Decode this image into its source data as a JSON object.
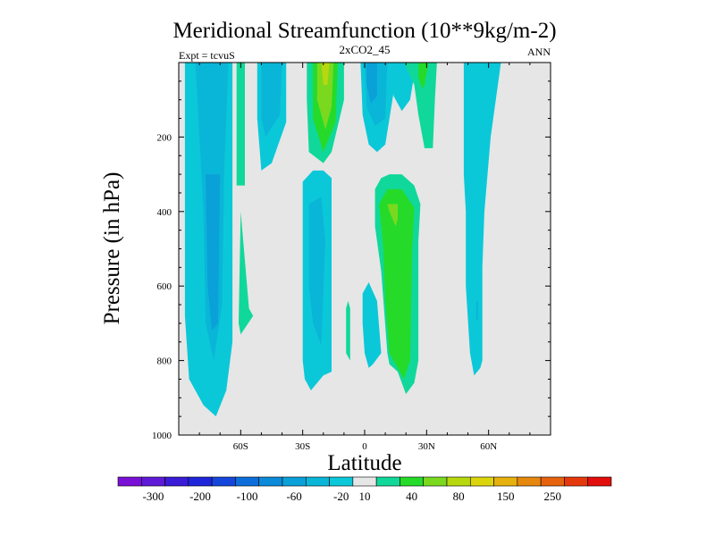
{
  "chart_data": {
    "type": "contour",
    "title": "Meridional Streamfunction (10**9kg/m-2)",
    "subtitle": "2xCO2_45",
    "left_string": "Expt = tcvuS",
    "right_string": "ANN",
    "xlabel": "Latitude",
    "ylabel": "Pressure (in hPa)",
    "x_range": [
      -90,
      90
    ],
    "y_range": [
      0,
      1000
    ],
    "y_reversed": true,
    "x_ticks": [
      {
        "value": -60,
        "label": "60S"
      },
      {
        "value": -30,
        "label": "30S"
      },
      {
        "value": 0,
        "label": "0"
      },
      {
        "value": 30,
        "label": "30N"
      },
      {
        "value": 60,
        "label": "60N"
      }
    ],
    "y_ticks": [
      {
        "value": 200,
        "label": "200"
      },
      {
        "value": 400,
        "label": "400"
      },
      {
        "value": 600,
        "label": "600"
      },
      {
        "value": 800,
        "label": "800"
      },
      {
        "value": 1000,
        "label": "1000"
      }
    ],
    "background_color": "#e6e6e6",
    "colorbar": {
      "colors": [
        "#7a10d6",
        "#5e1ad6",
        "#3a1bd6",
        "#1f25d9",
        "#1546db",
        "#0d6edb",
        "#0a8ad8",
        "#0aa0d8",
        "#0ab6d8",
        "#0bc8d8",
        "#e6e6e6",
        "#10d89a",
        "#26da2a",
        "#7ad81f",
        "#b7d80f",
        "#dcd50d",
        "#e6b00d",
        "#e6880d",
        "#e6620d",
        "#e6380d",
        "#e20d0d"
      ],
      "labels": [
        "-300",
        "-200",
        "-100",
        "-60",
        "-20",
        "10",
        "40",
        "80",
        "150",
        "250"
      ]
    },
    "regions": [
      {
        "fill": 9,
        "points": [
          [
            -90,
            0
          ],
          [
            -64,
            0
          ],
          [
            -64,
            750
          ],
          [
            -67,
            880
          ],
          [
            -72,
            950
          ],
          [
            -78,
            920
          ],
          [
            -85,
            850
          ],
          [
            -87,
            680
          ],
          [
            -87,
            0
          ]
        ]
      },
      {
        "fill": 8,
        "points": [
          [
            -82,
            0
          ],
          [
            -66,
            0
          ],
          [
            -68,
            300
          ],
          [
            -69,
            650
          ],
          [
            -73,
            800
          ],
          [
            -77,
            700
          ],
          [
            -78,
            400
          ]
        ]
      },
      {
        "fill": 7,
        "points": [
          [
            -77,
            300
          ],
          [
            -70,
            300
          ],
          [
            -71,
            700
          ],
          [
            -74,
            720
          ],
          [
            -76,
            600
          ]
        ]
      },
      {
        "fill": 11,
        "points": [
          [
            -62,
            0
          ],
          [
            -58,
            0
          ],
          [
            -58,
            330
          ],
          [
            -62,
            330
          ]
        ]
      },
      {
        "fill": 11,
        "points": [
          [
            -60,
            400
          ],
          [
            -56,
            660
          ],
          [
            -54,
            680
          ],
          [
            -60,
            730
          ],
          [
            -61,
            700
          ]
        ]
      },
      {
        "fill": 9,
        "points": [
          [
            -52,
            0
          ],
          [
            -38,
            0
          ],
          [
            -38,
            160
          ],
          [
            -45,
            270
          ],
          [
            -50,
            290
          ],
          [
            -52,
            150
          ]
        ]
      },
      {
        "fill": 8,
        "points": [
          [
            -50,
            0
          ],
          [
            -40,
            0
          ],
          [
            -41,
            140
          ],
          [
            -48,
            200
          ],
          [
            -50,
            150
          ]
        ]
      },
      {
        "fill": 9,
        "points": [
          [
            -30,
            320
          ],
          [
            -25,
            290
          ],
          [
            -20,
            290
          ],
          [
            -16,
            310
          ],
          [
            -16,
            830
          ],
          [
            -20,
            840
          ],
          [
            -26,
            880
          ],
          [
            -29,
            850
          ],
          [
            -30,
            800
          ],
          [
            -30,
            600
          ]
        ]
      },
      {
        "fill": 8,
        "points": [
          [
            -27,
            380
          ],
          [
            -21,
            360
          ],
          [
            -19,
            480
          ],
          [
            -21,
            760
          ],
          [
            -25,
            700
          ],
          [
            -27,
            600
          ]
        ]
      },
      {
        "fill": 11,
        "points": [
          [
            -28,
            0
          ],
          [
            -10,
            0
          ],
          [
            -10,
            100
          ],
          [
            -16,
            240
          ],
          [
            -20,
            270
          ],
          [
            -27,
            240
          ],
          [
            -28,
            100
          ]
        ]
      },
      {
        "fill": 12,
        "points": [
          [
            -25,
            0
          ],
          [
            -13,
            0
          ],
          [
            -14,
            160
          ],
          [
            -20,
            240
          ],
          [
            -25,
            150
          ]
        ]
      },
      {
        "fill": 13,
        "points": [
          [
            -23,
            0
          ],
          [
            -15,
            0
          ],
          [
            -16,
            120
          ],
          [
            -19,
            180
          ],
          [
            -23,
            100
          ]
        ]
      },
      {
        "fill": 14,
        "points": [
          [
            -21,
            0
          ],
          [
            -17,
            0
          ],
          [
            -18,
            60
          ],
          [
            -20,
            60
          ]
        ]
      },
      {
        "fill": 11,
        "points": [
          [
            -8,
            640
          ],
          [
            -7,
            660
          ],
          [
            -7,
            800
          ],
          [
            -9,
            780
          ],
          [
            -9,
            660
          ]
        ]
      },
      {
        "fill": 9,
        "points": [
          [
            -2,
            0
          ],
          [
            12,
            0
          ],
          [
            14,
            80
          ],
          [
            10,
            220
          ],
          [
            6,
            240
          ],
          [
            2,
            220
          ],
          [
            -1,
            140
          ]
        ]
      },
      {
        "fill": 8,
        "points": [
          [
            0,
            0
          ],
          [
            11,
            0
          ],
          [
            10,
            150
          ],
          [
            5,
            170
          ],
          [
            1,
            120
          ]
        ]
      },
      {
        "fill": 7,
        "points": [
          [
            1,
            0
          ],
          [
            6,
            0
          ],
          [
            6,
            90
          ],
          [
            3,
            110
          ],
          [
            1,
            60
          ]
        ]
      },
      {
        "fill": 9,
        "points": [
          [
            -1,
            620
          ],
          [
            2,
            590
          ],
          [
            6,
            640
          ],
          [
            8,
            780
          ],
          [
            4,
            810
          ],
          [
            2,
            820
          ],
          [
            0,
            780
          ],
          [
            -1,
            700
          ]
        ]
      },
      {
        "fill": 11,
        "points": [
          [
            5,
            340
          ],
          [
            8,
            310
          ],
          [
            12,
            300
          ],
          [
            18,
            300
          ],
          [
            24,
            330
          ],
          [
            27,
            380
          ],
          [
            26,
            480
          ],
          [
            26,
            800
          ],
          [
            24,
            860
          ],
          [
            20,
            890
          ],
          [
            18,
            860
          ],
          [
            16,
            830
          ],
          [
            12,
            810
          ],
          [
            11,
            780
          ],
          [
            8,
            560
          ],
          [
            5,
            440
          ]
        ]
      },
      {
        "fill": 12,
        "points": [
          [
            7,
            380
          ],
          [
            11,
            340
          ],
          [
            18,
            340
          ],
          [
            24,
            390
          ],
          [
            23,
            500
          ],
          [
            22,
            800
          ],
          [
            19,
            850
          ],
          [
            12,
            780
          ],
          [
            10,
            640
          ],
          [
            9,
            500
          ]
        ]
      },
      {
        "fill": 13,
        "points": [
          [
            11,
            380
          ],
          [
            16,
            380
          ],
          [
            16,
            420
          ],
          [
            15,
            440
          ],
          [
            12,
            400
          ]
        ]
      },
      {
        "fill": 9,
        "points": [
          [
            12,
            0
          ],
          [
            25,
            0
          ],
          [
            22,
            100
          ],
          [
            18,
            130
          ],
          [
            14,
            90
          ]
        ]
      },
      {
        "fill": 11,
        "points": [
          [
            19,
            0
          ],
          [
            35,
            0
          ],
          [
            34,
            100
          ],
          [
            33,
            230
          ],
          [
            29,
            230
          ],
          [
            26,
            140
          ],
          [
            24,
            60
          ]
        ]
      },
      {
        "fill": 12,
        "points": [
          [
            26,
            0
          ],
          [
            31,
            0
          ],
          [
            29,
            60
          ],
          [
            28,
            70
          ],
          [
            26,
            40
          ]
        ]
      },
      {
        "fill": 9,
        "points": [
          [
            48,
            0
          ],
          [
            66,
            0
          ],
          [
            61,
            200
          ],
          [
            58,
            400
          ],
          [
            57,
            550
          ],
          [
            57,
            800
          ],
          [
            56,
            820
          ],
          [
            53,
            840
          ],
          [
            51,
            780
          ],
          [
            49,
            600
          ],
          [
            49,
            400
          ],
          [
            48,
            300
          ]
        ]
      },
      {
        "fill": 8,
        "points": [
          [
            54,
            640
          ],
          [
            55,
            640
          ],
          [
            55,
            690
          ],
          [
            54,
            690
          ]
        ]
      }
    ]
  }
}
